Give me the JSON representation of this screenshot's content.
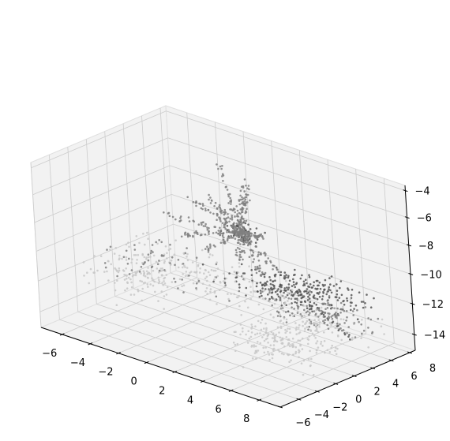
{
  "chart_data": {
    "type": "scatter",
    "projection": "3d",
    "title": "",
    "xlabel": "",
    "ylabel": "",
    "zlabel": "",
    "grid": true,
    "legend": "none",
    "xlim": [
      -7.5,
      9.5
    ],
    "ylim": [
      -6,
      8.6
    ],
    "zlim": [
      -15,
      -3.6
    ],
    "xticks": [
      -6,
      -4,
      -2,
      0,
      2,
      4,
      6,
      8
    ],
    "yticks": [
      -6,
      -4,
      -2,
      0,
      2,
      4,
      6,
      8
    ],
    "zticks": [
      -14,
      -12,
      -10,
      -8,
      -6,
      -4
    ],
    "xtick_labels": [
      "−6",
      "−4",
      "−2",
      "0",
      "2",
      "4",
      "6",
      "8"
    ],
    "ytick_labels": [
      "−6",
      "−4",
      "−2",
      "0",
      "2",
      "4",
      "6",
      "8"
    ],
    "ztick_labels": [
      "−14",
      "−12",
      "−10",
      "−8",
      "−6",
      "−4"
    ],
    "colors": {
      "pane": "#f2f2f2",
      "pane_line": "#e0e0e0",
      "grid": "#cccccc",
      "axis": "#000000",
      "point_dark": "#555555",
      "point_mid": "#808080",
      "point_light": "#c8c8c8"
    },
    "series": [
      {
        "clusters": [
          {
            "shade": "dark",
            "count": 190,
            "center": [
              2.8,
              5.5,
              -12.6
            ],
            "spread": [
              2.0,
              0.9,
              0.3
            ]
          },
          {
            "shade": "mid",
            "count": 140,
            "center": [
              6.0,
              3.8,
              -12.6
            ],
            "spread": [
              1.8,
              1.2,
              0.3
            ]
          },
          {
            "shade": "dark",
            "count": 90,
            "center": [
              4.0,
              7.2,
              -12.3
            ],
            "spread": [
              1.6,
              0.6,
              0.3
            ]
          },
          {
            "shade": "light",
            "count": 160,
            "center": [
              -1.5,
              3.0,
              -12.0
            ],
            "spread": [
              3.2,
              1.6,
              0.4
            ]
          },
          {
            "shade": "light",
            "count": 130,
            "center": [
              -4.5,
              0.5,
              -12.3
            ],
            "spread": [
              1.5,
              1.6,
              0.4
            ]
          },
          {
            "shade": "mid",
            "count": 60,
            "center": [
              -3.0,
              1.5,
              -11.4
            ],
            "spread": [
              2.0,
              1.2,
              0.5
            ]
          },
          {
            "shade": "light",
            "count": 160,
            "center": [
              6.5,
              0.5,
              -13.0
            ],
            "spread": [
              1.6,
              2.5,
              0.4
            ]
          },
          {
            "shade": "light",
            "count": 90,
            "center": [
              6.8,
              -2.0,
              -12.8
            ],
            "spread": [
              1.2,
              1.2,
              0.4
            ]
          }
        ],
        "trail": {
          "shade": "dark",
          "count": 22,
          "from": [
            2.6,
            7.0,
            -13.4
          ],
          "to": [
            7.0,
            5.6,
            -14.3
          ]
        },
        "spider": {
          "shade": "mid",
          "core_count": 70,
          "core": [
            1.6,
            2.4,
            -8.0
          ],
          "core_spread": [
            0.5,
            0.5,
            0.4
          ],
          "arm_points": 42,
          "arms": [
            [
              -0.8,
              3.0,
              -6.5
            ],
            [
              -1.5,
              1.6,
              -6.3
            ],
            [
              -0.2,
              3.3,
              -3.9
            ],
            [
              1.8,
              3.3,
              -4.4
            ],
            [
              2.4,
              1.8,
              -4.2
            ],
            [
              -2.6,
              0.4,
              -7.6
            ],
            [
              -0.6,
              -0.8,
              -8.0
            ],
            [
              4.8,
              -0.2,
              -9.2
            ],
            [
              3.6,
              3.2,
              -10.2
            ],
            [
              0.4,
              4.0,
              -10.8
            ],
            [
              -0.9,
              2.2,
              -10.0
            ],
            [
              4.0,
              1.2,
              -7.2
            ]
          ]
        }
      }
    ]
  }
}
